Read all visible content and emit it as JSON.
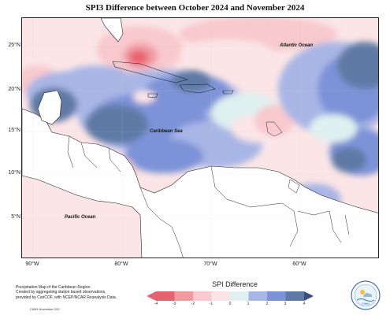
{
  "title": "SPI3 Difference between October 2024 and November 2024",
  "map": {
    "latitude_labels": [
      "25°N",
      "20°N",
      "15°N",
      "10°N",
      "5°N"
    ],
    "longitude_labels": [
      "90°W",
      "80°W",
      "70°W",
      "60°W"
    ],
    "region_labels": {
      "atlantic": "Atlantic Ocean",
      "caribbean": "Caribbean Sea",
      "pacific": "Pacific Ocean"
    }
  },
  "legend": {
    "title": "SPI Difference",
    "ticks": [
      "-4",
      "-3",
      "-2",
      "-1",
      "0",
      "1",
      "2",
      "3",
      "4"
    ],
    "colors": [
      "#e8636f",
      "#f19aa2",
      "#f8c9cd",
      "#fbe5e6",
      "#dff0f0",
      "#a8b6e6",
      "#7d93d8",
      "#5f7aa6",
      "#3e4d7e"
    ]
  },
  "footnote": {
    "line1": "Precipitation Map of the Caribbean Region.",
    "line2": "Created by aggregating station based observations,",
    "line3": "provided by CariCOF, with NCEP/NCAR Reanalysis Data.",
    "credit": "CIMH November 202"
  },
  "logo": {
    "text": "CIMH",
    "icon": "cimh-logo-icon"
  }
}
